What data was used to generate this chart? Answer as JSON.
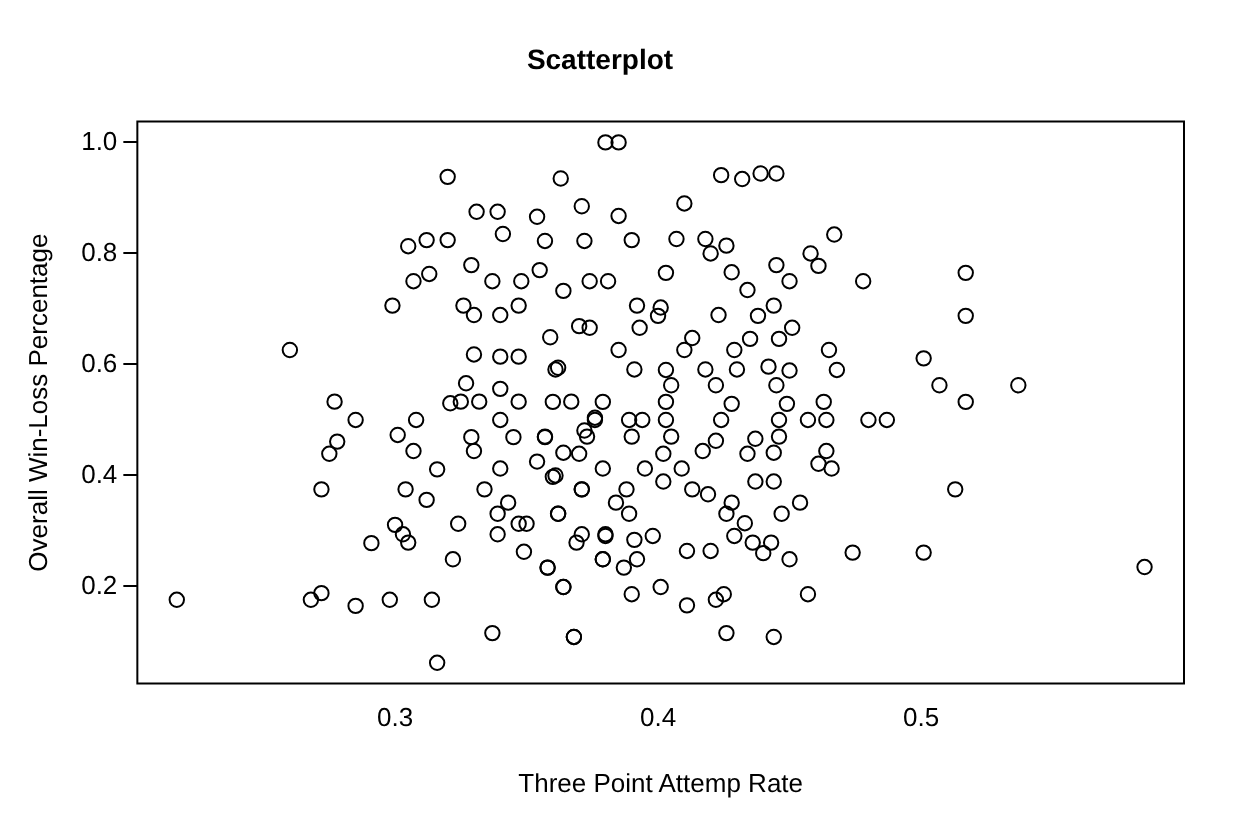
{
  "chart_data": {
    "type": "scatter",
    "title": "Scatterplot",
    "xlabel": "Three Point Attemp Rate",
    "ylabel": "Overall Win-Loss Percentage",
    "marker": "circle",
    "xlim": [
      0.202,
      0.6
    ],
    "ylim": [
      0.025,
      1.0375
    ],
    "xticks": [
      0.3,
      0.4,
      0.5
    ],
    "yticks": [
      0.2,
      0.4,
      0.6,
      0.8,
      {
        "value": 1,
        "label": "1.0"
      }
    ],
    "x": [
      0.217,
      0.26,
      0.268,
      0.272,
      0.277,
      0.285,
      0.278,
      0.275,
      0.272,
      0.285,
      0.291,
      0.298,
      0.299,
      0.3,
      0.303,
      0.305,
      0.301,
      0.304,
      0.308,
      0.307,
      0.312,
      0.316,
      0.314,
      0.316,
      0.305,
      0.312,
      0.307,
      0.313,
      0.32,
      0.32,
      0.322,
      0.324,
      0.321,
      0.325,
      0.326,
      0.329,
      0.331,
      0.33,
      0.33,
      0.327,
      0.332,
      0.329,
      0.33,
      0.334,
      0.337,
      0.339,
      0.341,
      0.337,
      0.34,
      0.34,
      0.34,
      0.34,
      0.34,
      0.339,
      0.339,
      0.343,
      0.345,
      0.347,
      0.347,
      0.347,
      0.348,
      0.347,
      0.35,
      0.349,
      0.354,
      0.355,
      0.357,
      0.363,
      0.364,
      0.359,
      0.362,
      0.357,
      0.354,
      0.361,
      0.358,
      0.364,
      0.362,
      0.37,
      0.371,
      0.372,
      0.374,
      0.367,
      0.371,
      0.371,
      0.368,
      0.372,
      0.376,
      0.379,
      0.38,
      0.38,
      0.385,
      0.424,
      0.432,
      0.439,
      0.445,
      0.41,
      0.385,
      0.39,
      0.407,
      0.418,
      0.426,
      0.42,
      0.458,
      0.467,
      0.461,
      0.445,
      0.45,
      0.478,
      0.517,
      0.517,
      0.428,
      0.434,
      0.403,
      0.381,
      0.392,
      0.401,
      0.4,
      0.423,
      0.438,
      0.444,
      0.451,
      0.393,
      0.374,
      0.413,
      0.435,
      0.446,
      0.465,
      0.468,
      0.501,
      0.507,
      0.537,
      0.517,
      0.429,
      0.41,
      0.385,
      0.361,
      0.391,
      0.403,
      0.418,
      0.43,
      0.442,
      0.45,
      0.405,
      0.422,
      0.445,
      0.36,
      0.379,
      0.403,
      0.428,
      0.449,
      0.463,
      0.376,
      0.389,
      0.394,
      0.403,
      0.424,
      0.446,
      0.457,
      0.464,
      0.48,
      0.487,
      0.357,
      0.373,
      0.39,
      0.405,
      0.422,
      0.437,
      0.446,
      0.402,
      0.417,
      0.434,
      0.444,
      0.464,
      0.461,
      0.466,
      0.364,
      0.37,
      0.379,
      0.395,
      0.409,
      0.402,
      0.36,
      0.371,
      0.388,
      0.413,
      0.419,
      0.437,
      0.444,
      0.428,
      0.454,
      0.513,
      0.389,
      0.384,
      0.362,
      0.426,
      0.447,
      0.433,
      0.429,
      0.436,
      0.443,
      0.44,
      0.398,
      0.391,
      0.38,
      0.369,
      0.387,
      0.379,
      0.392,
      0.411,
      0.42,
      0.45,
      0.474,
      0.501,
      0.358,
      0.364,
      0.39,
      0.401,
      0.411,
      0.422,
      0.425,
      0.457,
      0.368,
      0.426,
      0.444,
      0.585
    ],
    "series": [
      {
        "color": "#000000",
        "values": [
          0.176,
          0.626,
          0.176,
          0.188,
          0.533,
          0.5,
          0.461,
          0.439,
          0.375,
          0.165,
          0.278,
          0.176,
          0.706,
          0.311,
          0.294,
          0.279,
          0.473,
          0.375,
          0.5,
          0.444,
          0.356,
          0.411,
          0.176,
          0.0625,
          0.813,
          0.824,
          0.75,
          0.763,
          0.938,
          0.824,
          0.249,
          0.313,
          0.53,
          0.533,
          0.706,
          0.779,
          0.875,
          0.689,
          0.618,
          0.566,
          0.533,
          0.469,
          0.444,
          0.375,
          0.116,
          0.875,
          0.835,
          0.75,
          0.689,
          0.614,
          0.556,
          0.5,
          0.4125,
          0.331,
          0.294,
          0.351,
          0.469,
          0.533,
          0.614,
          0.706,
          0.75,
          0.313,
          0.313,
          0.2625,
          0.866,
          0.77,
          0.8225,
          0.935,
          0.7325,
          0.649,
          0.594,
          0.469,
          0.425,
          0.4,
          0.234,
          0.199,
          0.331,
          0.669,
          0.885,
          0.8225,
          0.75,
          0.533,
          0.375,
          0.294,
          0.109,
          0.481,
          0.504,
          0.249,
          1.0,
          0.294,
          1.0,
          0.941,
          0.934,
          0.944,
          0.944,
          0.89,
          0.8675,
          0.824,
          0.826,
          0.826,
          0.814,
          0.8,
          0.8,
          0.834,
          0.7775,
          0.779,
          0.75,
          0.75,
          0.765,
          0.6875,
          0.766,
          0.734,
          0.765,
          0.75,
          0.706,
          0.7025,
          0.6875,
          0.689,
          0.6875,
          0.706,
          0.666,
          0.666,
          0.666,
          0.6475,
          0.646,
          0.646,
          0.626,
          0.59,
          0.611,
          0.5625,
          0.5625,
          0.5325,
          0.626,
          0.626,
          0.626,
          0.591,
          0.591,
          0.59,
          0.591,
          0.591,
          0.596,
          0.589,
          0.5625,
          0.5625,
          0.5625,
          0.5325,
          0.5325,
          0.5325,
          0.529,
          0.529,
          0.5325,
          0.5,
          0.5,
          0.5,
          0.5,
          0.5,
          0.5,
          0.5,
          0.5,
          0.5,
          0.5,
          0.47,
          0.47,
          0.47,
          0.47,
          0.4625,
          0.466,
          0.47,
          0.439,
          0.444,
          0.439,
          0.441,
          0.444,
          0.421,
          0.4125,
          0.441,
          0.439,
          0.4125,
          0.4125,
          0.4125,
          0.389,
          0.3975,
          0.375,
          0.375,
          0.375,
          0.366,
          0.389,
          0.389,
          0.351,
          0.351,
          0.375,
          0.331,
          0.351,
          0.331,
          0.331,
          0.331,
          0.314,
          0.291,
          0.279,
          0.279,
          0.26,
          0.291,
          0.284,
          0.291,
          0.279,
          0.234,
          0.249,
          0.249,
          0.264,
          0.264,
          0.249,
          0.261,
          0.261,
          0.234,
          0.199,
          0.186,
          0.199,
          0.166,
          0.176,
          0.186,
          0.186,
          0.109,
          0.116,
          0.109,
          0.235
        ]
      }
    ]
  }
}
